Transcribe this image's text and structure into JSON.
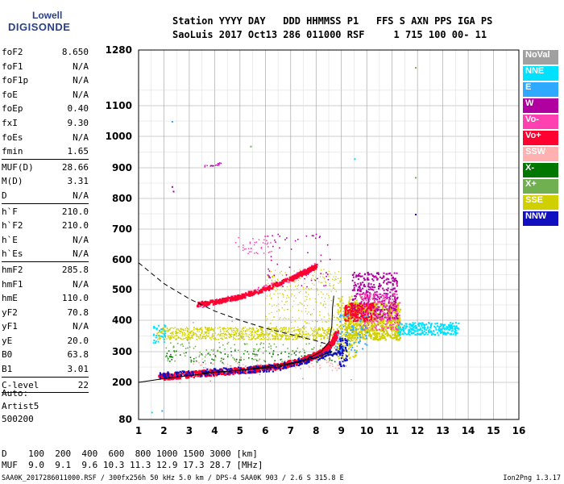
{
  "logo": {
    "line1": "Lowell",
    "line2": "DIGISONDE"
  },
  "header": {
    "line1": "Station YYYY DAY   DDD HHMMSS P1   FFS S AXN PPS IGA PS",
    "line2": "SaoLuis 2017 Oct13 286 011000 RSF     1 715 100 00- 11"
  },
  "params": [
    [
      {
        "name": "foF2",
        "value": "8.650"
      },
      {
        "name": "foF1",
        "value": "N/A"
      },
      {
        "name": "foF1p",
        "value": "N/A"
      },
      {
        "name": "foE",
        "value": "N/A"
      },
      {
        "name": "foEp",
        "value": "0.40"
      },
      {
        "name": "fxI",
        "value": "9.30"
      },
      {
        "name": "foEs",
        "value": "N/A"
      },
      {
        "name": "fmin",
        "value": "1.65"
      }
    ],
    [
      {
        "name": "MUF(D)",
        "value": "28.66"
      },
      {
        "name": "M(D)",
        "value": "3.31"
      },
      {
        "name": "D",
        "value": "N/A"
      }
    ],
    [
      {
        "name": "h`F",
        "value": "210.0"
      },
      {
        "name": "h`F2",
        "value": "210.0"
      },
      {
        "name": "h`E",
        "value": "N/A"
      },
      {
        "name": "h`Es",
        "value": "N/A"
      }
    ],
    [
      {
        "name": "hmF2",
        "value": "285.8"
      },
      {
        "name": "hmF1",
        "value": "N/A"
      },
      {
        "name": "hmE",
        "value": "110.0"
      },
      {
        "name": "yF2",
        "value": "70.8"
      },
      {
        "name": "yF1",
        "value": "N/A"
      },
      {
        "name": "yE",
        "value": "20.0"
      },
      {
        "name": "B0",
        "value": "63.8"
      },
      {
        "name": "B1",
        "value": "3.01"
      }
    ],
    [
      {
        "name": "C-level",
        "value": "22"
      }
    ]
  ],
  "auto": {
    "line1": "Auto:",
    "line2": "Artist5",
    "line3": "500200"
  },
  "legend": [
    {
      "label": "NoVal",
      "color": "#a0a0a0"
    },
    {
      "label": "NNE",
      "color": "#00e0ff"
    },
    {
      "label": "E",
      "color": "#2fa8ff"
    },
    {
      "label": "W",
      "color": "#b000a0"
    },
    {
      "label": "Vo-",
      "color": "#ff40b0"
    },
    {
      "label": "Vo+",
      "color": "#ff0030"
    },
    {
      "label": "SSW",
      "color": "#ffb0b0"
    },
    {
      "label": "X-",
      "color": "#007800"
    },
    {
      "label": "X+",
      "color": "#70b050"
    },
    {
      "label": "SSE",
      "color": "#d0d000"
    },
    {
      "label": "NNW",
      "color": "#1010c0"
    }
  ],
  "bottom": {
    "line1": "D    100  200  400  600  800 1000 1500 3000 [km]",
    "line2": "MUF  9.0  9.1  9.6 10.3 11.3 12.9 17.3 28.7 [MHz]"
  },
  "footer": "SAA0K_2017286011000.RSF / 300fx256h 50 kHz 5.0 km / DPS-4 SAA0K 903 / 2.6 S 315.8 E",
  "version": "Ion2Png 1.3.17",
  "chart_data": {
    "type": "scatter",
    "xlim": [
      1,
      16
    ],
    "ylim": [
      80,
      1280
    ],
    "x_ticks": [
      "1",
      "2",
      "3",
      "4",
      "5",
      "6",
      "7",
      "8",
      "9",
      "10",
      "11",
      "12",
      "13",
      "14",
      "15",
      "16"
    ],
    "y_ticks": [
      "80",
      "200",
      "300",
      "400",
      "500",
      "600",
      "700",
      "800",
      "900",
      "1000",
      "1100",
      "1280"
    ],
    "x_tick_values": [
      1,
      2,
      3,
      4,
      5,
      6,
      7,
      8,
      9,
      10,
      11,
      12,
      13,
      14,
      15,
      16
    ],
    "y_tick_values": [
      80,
      200,
      300,
      400,
      500,
      600,
      700,
      800,
      900,
      1000,
      1100,
      1280
    ],
    "grid": true,
    "series": [
      {
        "name": "Vo+",
        "color": "#ff0030",
        "points": [
          [
            1.8,
            220
          ],
          [
            2.5,
            225
          ],
          [
            3.5,
            232
          ],
          [
            4.5,
            238
          ],
          [
            5.5,
            245
          ],
          [
            6.5,
            255
          ],
          [
            7.5,
            275
          ],
          [
            8.2,
            300
          ],
          [
            8.6,
            330
          ],
          [
            8.8,
            360
          ]
        ]
      },
      {
        "name": "Vo+",
        "color": "#ff0030",
        "points": [
          [
            3.3,
            455
          ],
          [
            4.0,
            462
          ],
          [
            5.0,
            480
          ],
          [
            6.0,
            505
          ],
          [
            7.0,
            540
          ],
          [
            7.5,
            560
          ],
          [
            8.0,
            580
          ]
        ]
      },
      {
        "name": "SSE",
        "color": "#d0d000",
        "points": [
          [
            1.8,
            350
          ],
          [
            3,
            350
          ],
          [
            4.5,
            355
          ],
          [
            6,
            360
          ],
          [
            7.5,
            365
          ],
          [
            9.2,
            380
          ],
          [
            10,
            410
          ],
          [
            11,
            390
          ]
        ]
      },
      {
        "name": "NNE",
        "color": "#00e0ff",
        "points": [
          [
            11.2,
            380
          ],
          [
            12,
            390
          ],
          [
            12.6,
            375
          ],
          [
            13.2,
            365
          ],
          [
            14.2,
            340
          ]
        ]
      }
    ],
    "curves": [
      {
        "style": "dashed",
        "points": [
          [
            1,
            590
          ],
          [
            2,
            520
          ],
          [
            3,
            470
          ],
          [
            4,
            430
          ],
          [
            5,
            400
          ],
          [
            6,
            375
          ],
          [
            7,
            355
          ],
          [
            8,
            335
          ],
          [
            8.6,
            320
          ]
        ]
      },
      {
        "style": "solid",
        "points": [
          [
            1,
            200
          ],
          [
            2,
            212
          ],
          [
            3,
            222
          ],
          [
            4,
            232
          ],
          [
            5,
            240
          ],
          [
            6,
            250
          ],
          [
            7,
            262
          ],
          [
            8,
            280
          ],
          [
            8.6,
            300
          ]
        ]
      },
      {
        "style": "solid",
        "points": [
          [
            3.5,
            230
          ],
          [
            5,
            240
          ],
          [
            6.5,
            250
          ],
          [
            7.5,
            270
          ],
          [
            8.2,
            300
          ],
          [
            8.5,
            330
          ],
          [
            8.62,
            380
          ],
          [
            8.65,
            440
          ],
          [
            8.7,
            480
          ]
        ]
      }
    ]
  }
}
